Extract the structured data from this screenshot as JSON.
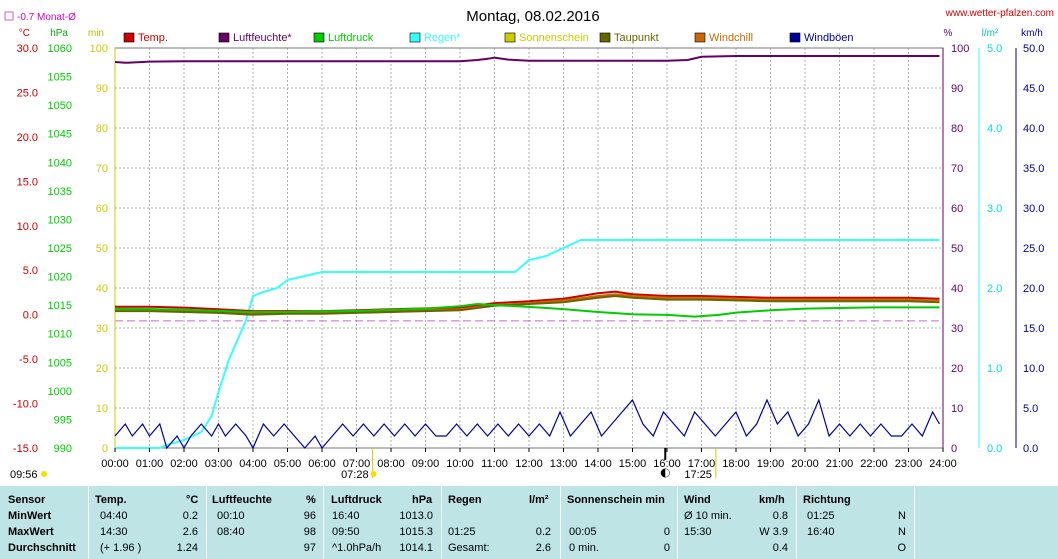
{
  "header": {
    "title": "Montag, 08.02.2016",
    "source": "www.wetter-pfalzen.com",
    "monthly_avg_label": "-0.7 Monat-Ø"
  },
  "unit_labels": {
    "temp": "°C",
    "pressure": "hPa",
    "minutes": "min",
    "percent": "%",
    "rain": "l/m²",
    "wind": "km/h"
  },
  "legend": [
    {
      "label": "Temp.",
      "color": "#cc0000"
    },
    {
      "label": "Luftfeuchte*",
      "color": "#660066"
    },
    {
      "label": "Luftdruck",
      "color": "#00cc00"
    },
    {
      "label": "Regen*",
      "color": "#33ffff"
    },
    {
      "label": "Sonnenschein",
      "color": "#cccc00"
    },
    {
      "label": "Taupunkt",
      "color": "#666600"
    },
    {
      "label": "Windchill",
      "color": "#cc6600"
    },
    {
      "label": "Windböen",
      "color": "#000099"
    }
  ],
  "sun": {
    "sunrise": "07:28",
    "sunset": "17:25",
    "dawn_label": "09:56"
  },
  "chart_data": {
    "type": "line",
    "title": "Montag, 08.02.2016",
    "x_range": [
      "00:00",
      "24:00"
    ],
    "x_ticks": [
      "00:00",
      "01:00",
      "02:00",
      "03:00",
      "04:00",
      "05:00",
      "06:00",
      "07:00",
      "08:00",
      "09:00",
      "10:00",
      "11:00",
      "12:00",
      "13:00",
      "14:00",
      "15:00",
      "16:00",
      "17:00",
      "18:00",
      "19:00",
      "20:00",
      "21:00",
      "22:00",
      "23:00",
      "24:00"
    ],
    "axes": {
      "temp": {
        "unit": "°C",
        "range": [
          -15,
          30
        ],
        "ticks": [
          "30.0",
          "25.0",
          "20.0",
          "15.0",
          "10.0",
          "5.0",
          "0.0",
          "-5.0",
          "-10.0",
          "-15.0"
        ]
      },
      "pressure": {
        "unit": "hPa",
        "range": [
          990,
          1060
        ],
        "ticks": [
          "1060",
          "1055",
          "1050",
          "1045",
          "1040",
          "1035",
          "1030",
          "1025",
          "1020",
          "1015",
          "1010",
          "1005",
          "1000",
          "995",
          "990"
        ]
      },
      "sunshine": {
        "unit": "min",
        "range": [
          0,
          100
        ],
        "ticks": [
          "100",
          "90",
          "80",
          "70",
          "60",
          "50",
          "40",
          "30",
          "20",
          "10",
          "0"
        ]
      },
      "humidity": {
        "unit": "%",
        "range": [
          0,
          100
        ],
        "ticks": [
          "100",
          "90",
          "80",
          "70",
          "60",
          "50",
          "40",
          "30",
          "20",
          "10",
          "0"
        ]
      },
      "rain": {
        "unit": "l/m²",
        "range": [
          0,
          5
        ],
        "ticks": [
          "5.0",
          "4.0",
          "3.0",
          "2.0",
          "1.0",
          "0.0"
        ]
      },
      "wind": {
        "unit": "km/h",
        "range": [
          0,
          50
        ],
        "ticks": [
          "50.0",
          "45.0",
          "40.0",
          "35.0",
          "30.0",
          "25.0",
          "20.0",
          "15.0",
          "10.0",
          "5.0",
          "0.0"
        ]
      }
    },
    "monthly_avg_temp": -0.7,
    "series": [
      {
        "name": "Luftfeuchte*",
        "axis": "humidity",
        "color": "#660066",
        "x": [
          0,
          0.3,
          1,
          2,
          3,
          4,
          5,
          6,
          7,
          8,
          9,
          10,
          10.5,
          10.8,
          11,
          11.4,
          12,
          13,
          14,
          15,
          16,
          16.6,
          17,
          18,
          19,
          20,
          21,
          22,
          23,
          23.9
        ],
        "y": [
          96.5,
          96.3,
          96.6,
          96.7,
          96.7,
          96.7,
          96.7,
          96.7,
          96.7,
          96.7,
          96.7,
          96.7,
          97.0,
          97.3,
          97.6,
          97.1,
          96.8,
          96.8,
          96.8,
          96.8,
          96.8,
          97.0,
          97.8,
          98.0,
          98.0,
          98.0,
          98.0,
          98.0,
          98.0,
          98.0
        ]
      },
      {
        "name": "Regen*",
        "axis": "rain",
        "color": "#33ffff",
        "x": [
          0,
          1.3,
          1.6,
          2,
          2.5,
          2.8,
          3,
          3.3,
          3.6,
          3.8,
          4,
          4.3,
          4.7,
          5,
          5.5,
          6,
          7,
          8,
          9,
          10,
          11,
          11.6,
          12,
          12.5,
          13,
          13.5,
          14,
          16,
          18,
          20,
          22,
          23.9
        ],
        "y": [
          0,
          0,
          0.05,
          0.1,
          0.2,
          0.4,
          0.7,
          1.1,
          1.4,
          1.6,
          1.9,
          1.95,
          2.0,
          2.1,
          2.15,
          2.2,
          2.2,
          2.2,
          2.2,
          2.2,
          2.2,
          2.2,
          2.35,
          2.4,
          2.5,
          2.6,
          2.6,
          2.6,
          2.6,
          2.6,
          2.6,
          2.6
        ]
      },
      {
        "name": "Temp.",
        "axis": "temp",
        "color": "#cc0000",
        "x": [
          0,
          1,
          2,
          3,
          4,
          5,
          6,
          7,
          8,
          9,
          10,
          11,
          12,
          13,
          14,
          14.5,
          15,
          16,
          17,
          18,
          19,
          20,
          21,
          22,
          23,
          23.9
        ],
        "y": [
          0.9,
          0.9,
          0.8,
          0.6,
          0.4,
          0.4,
          0.4,
          0.5,
          0.6,
          0.7,
          0.8,
          1.3,
          1.5,
          1.8,
          2.4,
          2.6,
          2.3,
          2.1,
          2.1,
          2.0,
          1.9,
          1.9,
          1.9,
          1.9,
          1.9,
          1.8
        ]
      },
      {
        "name": "Windchill",
        "axis": "temp",
        "color": "#cc6600",
        "x": [
          0,
          1,
          2,
          3,
          4,
          5,
          6,
          7,
          8,
          9,
          10,
          11,
          12,
          13,
          14,
          14.5,
          15,
          16,
          17,
          18,
          19,
          20,
          21,
          22,
          23,
          23.9
        ],
        "y": [
          0.6,
          0.6,
          0.5,
          0.3,
          0.1,
          0.2,
          0.2,
          0.3,
          0.4,
          0.5,
          0.6,
          1.1,
          1.3,
          1.6,
          2.1,
          2.3,
          2.1,
          1.9,
          1.9,
          1.8,
          1.7,
          1.7,
          1.7,
          1.7,
          1.7,
          1.6
        ]
      },
      {
        "name": "Taupunkt",
        "axis": "temp",
        "color": "#666600",
        "x": [
          0,
          1,
          2,
          3,
          4,
          5,
          6,
          7,
          8,
          9,
          10,
          11,
          12,
          13,
          14,
          14.5,
          15,
          16,
          17,
          18,
          19,
          20,
          21,
          22,
          23,
          23.9
        ],
        "y": [
          0.4,
          0.4,
          0.3,
          0.2,
          0.0,
          0.1,
          0.1,
          0.2,
          0.3,
          0.4,
          0.5,
          1.0,
          1.2,
          1.4,
          1.9,
          2.1,
          1.9,
          1.7,
          1.7,
          1.6,
          1.5,
          1.5,
          1.5,
          1.5,
          1.5,
          1.4
        ]
      },
      {
        "name": "Luftdruck",
        "axis": "pressure",
        "color": "#00cc00",
        "x": [
          0,
          1,
          2,
          3,
          4,
          5,
          6,
          7,
          8,
          9,
          10,
          10.5,
          11,
          12,
          13,
          14,
          15,
          16,
          16.8,
          17.5,
          18,
          19,
          20,
          21,
          22,
          23,
          23.9
        ],
        "y": [
          1014.4,
          1014.3,
          1014.2,
          1014.0,
          1013.8,
          1013.8,
          1013.9,
          1014.0,
          1014.2,
          1014.4,
          1014.8,
          1015.2,
          1015.0,
          1014.7,
          1014.3,
          1013.8,
          1013.4,
          1013.3,
          1013.0,
          1013.3,
          1013.7,
          1014.1,
          1014.4,
          1014.5,
          1014.6,
          1014.6,
          1014.6
        ]
      },
      {
        "name": "Windböen",
        "axis": "wind",
        "color": "#000099",
        "x": [
          0,
          0.3,
          0.5,
          0.8,
          1,
          1.3,
          1.5,
          1.8,
          2,
          2.2,
          2.5,
          2.8,
          3,
          3.2,
          3.5,
          3.8,
          4,
          4.3,
          4.6,
          4.9,
          5.2,
          5.5,
          5.8,
          6,
          6.3,
          6.6,
          6.9,
          7.2,
          7.5,
          7.8,
          8.1,
          8.4,
          8.7,
          9,
          9.3,
          9.6,
          9.9,
          10.2,
          10.5,
          10.8,
          11.1,
          11.4,
          11.7,
          12,
          12.3,
          12.6,
          12.9,
          13.2,
          13.5,
          13.8,
          14.1,
          14.4,
          14.7,
          15,
          15.3,
          15.6,
          15.9,
          16.2,
          16.5,
          16.8,
          17.1,
          17.4,
          17.7,
          18,
          18.3,
          18.6,
          18.9,
          19.2,
          19.5,
          19.8,
          20.1,
          20.4,
          20.7,
          21,
          21.3,
          21.6,
          21.9,
          22.2,
          22.5,
          22.8,
          23.1,
          23.4,
          23.7,
          23.9
        ],
        "y": [
          1.5,
          3,
          1.5,
          3,
          1.5,
          3,
          0,
          1.5,
          0,
          1.5,
          3,
          1.5,
          3,
          1.5,
          3,
          1.5,
          0,
          3,
          1.5,
          3,
          1.5,
          0,
          1.5,
          0,
          1.5,
          3,
          1.5,
          3,
          1.5,
          3,
          1.5,
          3,
          1.5,
          3,
          1.5,
          1.5,
          3,
          1.5,
          3,
          1.5,
          3,
          1.5,
          3,
          1.5,
          3,
          1.5,
          4.5,
          1.5,
          3,
          4.5,
          1.5,
          3,
          4.5,
          6,
          3,
          1.5,
          4.5,
          3,
          1.5,
          4.5,
          3,
          1.5,
          3,
          4.5,
          1.5,
          3,
          6,
          3,
          4.5,
          1.5,
          3,
          6,
          1.5,
          3,
          1.5,
          3,
          1.5,
          3,
          1.5,
          1.5,
          3,
          1.5,
          4.5,
          3
        ]
      }
    ]
  },
  "table": {
    "headers": {
      "sensor": "Sensor",
      "temp": "Temp.",
      "temp_unit": "°C",
      "hum": "Luftfeuchte",
      "hum_unit": "%",
      "press": "Luftdruck",
      "press_unit": "hPa",
      "rain": "Regen",
      "rain_unit": "l/m²",
      "sun": "Sonnenschein min",
      "wind": "Wind",
      "wind_unit": "km/h",
      "dir": "Richtung"
    },
    "rows": [
      {
        "label": "MinWert",
        "temp_time": "04:40",
        "temp_val": "0.2",
        "hum_time": "00:10",
        "hum_val": "96",
        "press_time": "16:40",
        "press_val": "1013.0",
        "rain_time": "",
        "rain_val": "",
        "sun_time": "",
        "sun_val": "",
        "wind_time": "Ø 10 min.",
        "wind_val": "0.8",
        "dir_time": "01:25",
        "dir_val": "N"
      },
      {
        "label": "MaxWert",
        "temp_time": "14:30",
        "temp_val": "2.6",
        "hum_time": "08:40",
        "hum_val": "98",
        "press_time": "09:50",
        "press_val": "1015.3",
        "rain_time": "01:25",
        "rain_val": "0.2",
        "sun_time": "00:05",
        "sun_val": "0",
        "wind_time": "15:30",
        "wind_val": "W 3.9",
        "dir_time": "16:40",
        "dir_val": "N"
      },
      {
        "label": "Durchschnitt",
        "temp_time": "(+ 1.96 )",
        "temp_val": "1.24",
        "hum_time": "",
        "hum_val": "97",
        "press_time": "^1.0hPa/h",
        "press_val": "1014.1",
        "rain_time": "Gesamt:",
        "rain_val": "2.6",
        "sun_time": "0 min.",
        "sun_val": "0",
        "wind_time": "",
        "wind_val": "0.4",
        "dir_time": "",
        "dir_val": "O"
      }
    ]
  }
}
